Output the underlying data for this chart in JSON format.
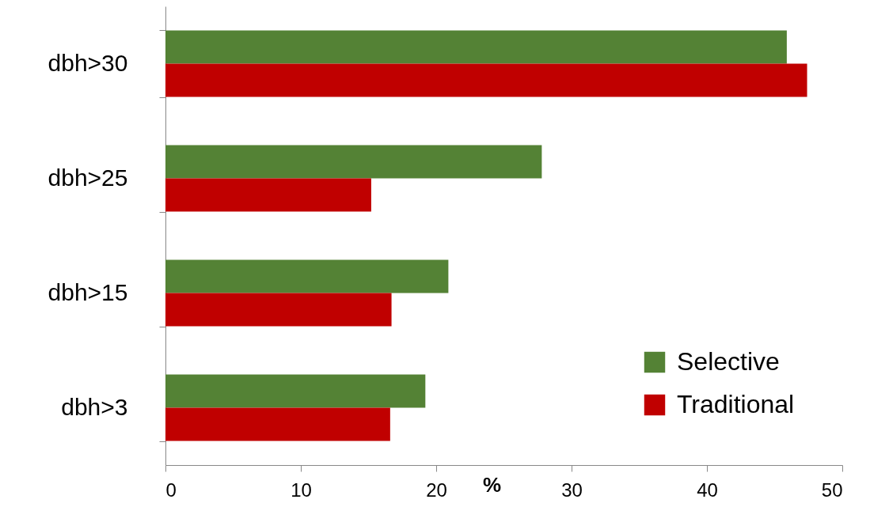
{
  "chart_data": {
    "type": "bar",
    "orientation": "horizontal",
    "xlabel": "%",
    "categories": [
      "dbh>30",
      "dbh>25",
      "dbh>15",
      "dbh>3"
    ],
    "series": [
      {
        "name": "Selective",
        "color": "#548235",
        "values": [
          45.9,
          27.8,
          20.9,
          19.2
        ]
      },
      {
        "name": "Traditional",
        "color": "#c00000",
        "values": [
          47.4,
          15.2,
          16.7,
          16.6
        ]
      }
    ],
    "xlim": [
      0,
      50
    ],
    "xticks": [
      0,
      10,
      20,
      30,
      40,
      50
    ],
    "grid": false,
    "legend": "bottom right"
  }
}
